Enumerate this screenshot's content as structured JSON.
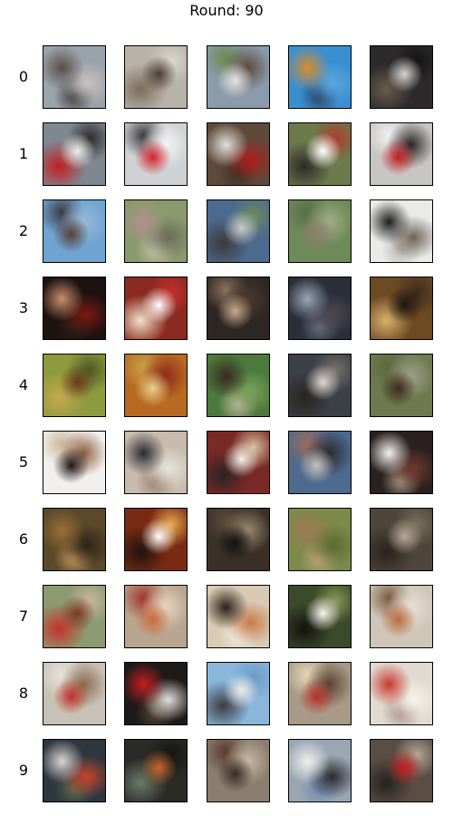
{
  "title": "Round: 90",
  "rows": [
    {
      "label": "0",
      "tiles": [
        {
          "bg": "#9aa3aa",
          "blobs": [
            "#5a4e48",
            "#c9c2be",
            "#3e3b3a"
          ]
        },
        {
          "bg": "#b9b2a8",
          "blobs": [
            "#4a3d34",
            "#7a6c5c",
            "#dcd6cf"
          ]
        },
        {
          "bg": "#8b9bab",
          "blobs": [
            "#e6e3e0",
            "#5b4b40",
            "#6c8a4c"
          ]
        },
        {
          "bg": "#3a8fd1",
          "blobs": [
            "#d98b2c",
            "#5aa7e0",
            "#2a3e5e"
          ]
        },
        {
          "bg": "#2c2a2a",
          "blobs": [
            "#d8d6d4",
            "#6a5c4c",
            "#151414"
          ]
        }
      ]
    },
    {
      "label": "1",
      "tiles": [
        {
          "bg": "#7f8790",
          "blobs": [
            "#ededed",
            "#c41e22",
            "#2a2a2a"
          ]
        },
        {
          "bg": "#cfd2d4",
          "blobs": [
            "#d5202a",
            "#f5f5f5",
            "#3a3a3a"
          ]
        },
        {
          "bg": "#5e4a3a",
          "blobs": [
            "#e2dedb",
            "#b01c1c",
            "#3c2e26"
          ]
        },
        {
          "bg": "#6c7a4c",
          "blobs": [
            "#ffffff",
            "#2e2a28",
            "#b23a2c"
          ]
        },
        {
          "bg": "#c8c6c4",
          "blobs": [
            "#c41e22",
            "#2a2424",
            "#f1f1f1"
          ]
        }
      ]
    },
    {
      "label": "2",
      "tiles": [
        {
          "bg": "#6fa4d2",
          "blobs": [
            "#5a3e36",
            "#9bb9d5",
            "#3a3a40"
          ]
        },
        {
          "bg": "#8a9a6c",
          "blobs": [
            "#b09090",
            "#6b6c5c",
            "#c4c0a6"
          ]
        },
        {
          "bg": "#4c6a8e",
          "blobs": [
            "#c9cbc7",
            "#3c3a3a",
            "#6c8a5c"
          ]
        },
        {
          "bg": "#6e8a58",
          "blobs": [
            "#8e7e6e",
            "#a0ad86",
            "#5a6e4a"
          ]
        },
        {
          "bg": "#eaeae8",
          "blobs": [
            "#1e1e1e",
            "#6e6256",
            "#b8b4ac"
          ]
        }
      ]
    },
    {
      "label": "3",
      "tiles": [
        {
          "bg": "#1c1210",
          "blobs": [
            "#c98e6c",
            "#7a1a12",
            "#2e1e18"
          ]
        },
        {
          "bg": "#8a2a20",
          "blobs": [
            "#ffffff",
            "#f0e2c8",
            "#c4302a"
          ]
        },
        {
          "bg": "#2e2622",
          "blobs": [
            "#c7aa8e",
            "#4c3a30",
            "#8c7260"
          ]
        },
        {
          "bg": "#2a2e3a",
          "blobs": [
            "#9aa6b6",
            "#4c4a52",
            "#6c6e7e"
          ]
        },
        {
          "bg": "#6c4a22",
          "blobs": [
            "#1e1612",
            "#d8b06c",
            "#3c2a1c"
          ]
        }
      ]
    },
    {
      "label": "4",
      "tiles": [
        {
          "bg": "#8e9a3e",
          "blobs": [
            "#6a3a1c",
            "#c6a84e",
            "#4c5a22"
          ]
        },
        {
          "bg": "#b86a22",
          "blobs": [
            "#e8d08a",
            "#8a2a1c",
            "#c8a048"
          ]
        },
        {
          "bg": "#4c7a3c",
          "blobs": [
            "#3a2a22",
            "#7aa25a",
            "#c0b8a0"
          ]
        },
        {
          "bg": "#3c4048",
          "blobs": [
            "#ddd8d2",
            "#2a241e",
            "#7a7268"
          ]
        },
        {
          "bg": "#6e7a4e",
          "blobs": [
            "#3e2a1e",
            "#a0a08a",
            "#5c6a3e"
          ]
        }
      ]
    },
    {
      "label": "5",
      "tiles": [
        {
          "bg": "#f2f0ee",
          "blobs": [
            "#1e1814",
            "#8a5a3e",
            "#c9b89a"
          ]
        },
        {
          "bg": "#c8bcae",
          "blobs": [
            "#2c2a30",
            "#e8e4dc",
            "#9a7e6a"
          ]
        },
        {
          "bg": "#7a2a26",
          "blobs": [
            "#f3f0ec",
            "#2a2424",
            "#d8c0a0"
          ]
        },
        {
          "bg": "#4e6a8e",
          "blobs": [
            "#c7c1ba",
            "#2a2a2e",
            "#9e6c5a"
          ]
        },
        {
          "bg": "#2a2020",
          "blobs": [
            "#f4f2f0",
            "#6e3a2c",
            "#a89684"
          ]
        }
      ]
    },
    {
      "label": "6",
      "tiles": [
        {
          "bg": "#5a4a2a",
          "blobs": [
            "#9c6e36",
            "#2e241a",
            "#c8965e"
          ]
        },
        {
          "bg": "#7a2a12",
          "blobs": [
            "#ffffff",
            "#1e1410",
            "#e8a84e"
          ]
        },
        {
          "bg": "#3a3028",
          "blobs": [
            "#141010",
            "#9a8a72",
            "#5c4c3c"
          ]
        },
        {
          "bg": "#7e8a4a",
          "blobs": [
            "#9e7a52",
            "#5c6a32",
            "#c0a47a"
          ]
        },
        {
          "bg": "#4e463a",
          "blobs": [
            "#b8aa98",
            "#2a221c",
            "#7a6e5e"
          ]
        }
      ]
    },
    {
      "label": "7",
      "tiles": [
        {
          "bg": "#8c9a72",
          "blobs": [
            "#7a3a22",
            "#c8302a",
            "#c9b69e"
          ]
        },
        {
          "bg": "#b8a690",
          "blobs": [
            "#ce6a3a",
            "#e8d6c0",
            "#a0332a"
          ]
        },
        {
          "bg": "#d8cab4",
          "blobs": [
            "#2a201a",
            "#c87a4a",
            "#f2ece2"
          ]
        },
        {
          "bg": "#3a4a2a",
          "blobs": [
            "#f5f3ef",
            "#141210",
            "#8a9a5a"
          ]
        },
        {
          "bg": "#cfc6b8",
          "blobs": [
            "#b86a3c",
            "#e8e0d4",
            "#7a5a40"
          ]
        }
      ]
    },
    {
      "label": "8",
      "tiles": [
        {
          "bg": "#c8c2b6",
          "blobs": [
            "#c2302a",
            "#8a6a4c",
            "#e8e4dc"
          ]
        },
        {
          "bg": "#1e1a18",
          "blobs": [
            "#c41e22",
            "#e2e0dc",
            "#5a4a3a"
          ]
        },
        {
          "bg": "#8ab6dc",
          "blobs": [
            "#ecebe8",
            "#3c3c40",
            "#6a9ac6"
          ]
        },
        {
          "bg": "#a89a86",
          "blobs": [
            "#b8302a",
            "#5a4232",
            "#e6d6b8"
          ]
        },
        {
          "bg": "#e2dad0",
          "blobs": [
            "#c83a2e",
            "#f6f2ec",
            "#a8928a"
          ]
        }
      ]
    },
    {
      "label": "9",
      "tiles": [
        {
          "bg": "#2e3640",
          "blobs": [
            "#d8d6d4",
            "#c8442a",
            "#5a6a4c"
          ]
        },
        {
          "bg": "#2a2a26",
          "blobs": [
            "#c8642a",
            "#6a7a6a",
            "#141414"
          ]
        },
        {
          "bg": "#8a7e70",
          "blobs": [
            "#3a2a24",
            "#c8b8a4",
            "#5a3a2e"
          ]
        },
        {
          "bg": "#9aa6b4",
          "blobs": [
            "#f0efed",
            "#2a2a2e",
            "#6c8ab0"
          ]
        },
        {
          "bg": "#5a4e44",
          "blobs": [
            "#c41e22",
            "#262220",
            "#b4a898"
          ]
        }
      ]
    }
  ]
}
